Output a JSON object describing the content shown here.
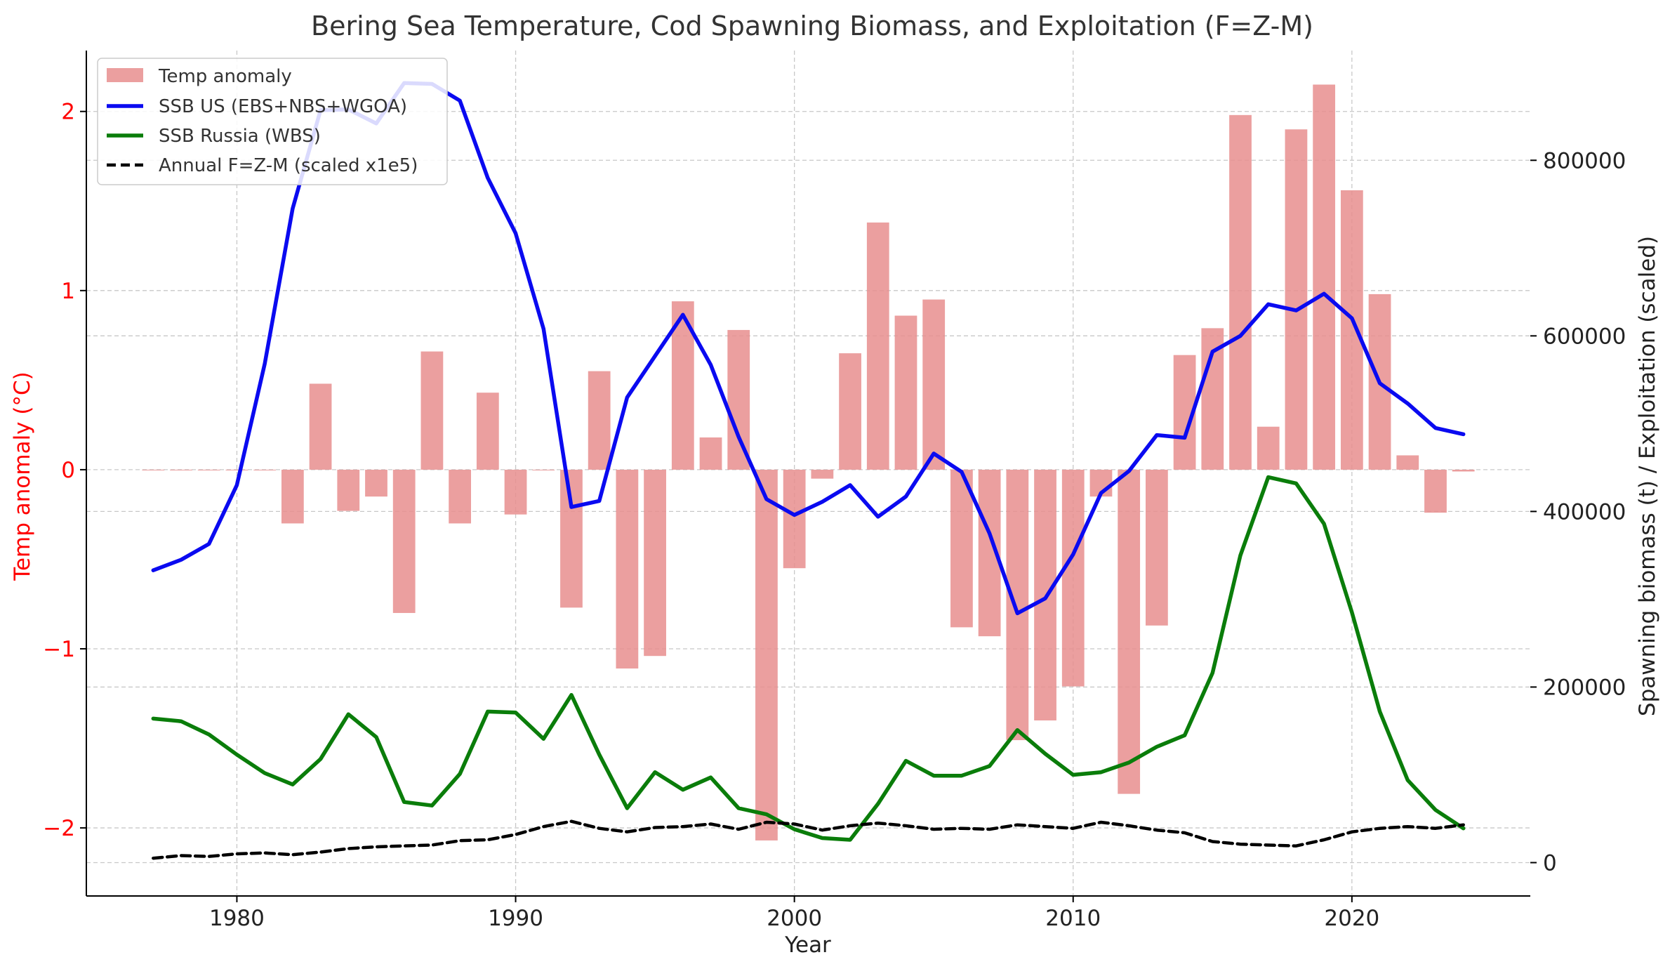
{
  "chart_data": {
    "type": "bar+line",
    "title": "Bering Sea Temperature, Cod Spawning Biomass, and Exploitation (F=Z-M)",
    "xlabel": "Year",
    "ylabel_left": "Temp anomaly (°C)",
    "ylabel_right": "Spawning biomass (t) / Exploitation (scaled)",
    "xlim": [
      1974.6,
      2026.4
    ],
    "ylim_left": [
      -2.38,
      2.34
    ],
    "ylim_right": [
      -38000,
      925000
    ],
    "xticks": [
      1980,
      1990,
      2000,
      2010,
      2020
    ],
    "yticks_left": [
      -2,
      -1,
      0,
      1,
      2
    ],
    "yticks_left_labels": [
      "−2",
      "−1",
      "0",
      "1",
      "2"
    ],
    "yticks_right": [
      0,
      200000,
      400000,
      600000,
      800000
    ],
    "yticks_right_labels": [
      "0",
      "200000",
      "400000",
      "600000",
      "800000"
    ],
    "grid": true,
    "legend_position": "top-left",
    "colors": {
      "temp": "#e88e8e",
      "ssb_us": "#0a0af0",
      "ssb_russia": "#0a7d0a",
      "exploitation": "#000000",
      "left_axis": "#ff0000"
    },
    "x": [
      1977,
      1978,
      1979,
      1980,
      1981,
      1982,
      1983,
      1984,
      1985,
      1986,
      1987,
      1988,
      1989,
      1990,
      1991,
      1992,
      1993,
      1994,
      1995,
      1996,
      1997,
      1998,
      1999,
      2000,
      2001,
      2002,
      2003,
      2004,
      2005,
      2006,
      2007,
      2008,
      2009,
      2010,
      2011,
      2012,
      2013,
      2014,
      2015,
      2016,
      2017,
      2018,
      2019,
      2020,
      2021,
      2022,
      2023,
      2024
    ],
    "series": [
      {
        "name": "Temp anomaly",
        "kind": "bar",
        "axis": "left",
        "values": [
          0,
          0,
          0,
          0,
          0,
          -0.3,
          0.48,
          -0.23,
          -0.15,
          -0.8,
          0.66,
          -0.3,
          0.43,
          -0.25,
          0,
          -0.77,
          0.55,
          -1.11,
          -1.04,
          0.94,
          0.18,
          0.78,
          -2.07,
          -0.55,
          -0.05,
          0.65,
          1.38,
          0.86,
          0.95,
          -0.88,
          -0.93,
          -1.51,
          -1.4,
          -1.21,
          -0.15,
          -1.81,
          -0.87,
          0.64,
          0.79,
          1.98,
          0.24,
          1.9,
          2.15,
          1.56,
          0.98,
          0.08,
          -0.24,
          -0.01
        ]
      },
      {
        "name": "SSB US (EBS+NBS+WGOA)",
        "kind": "line",
        "axis": "right",
        "values": [
          333000,
          345000,
          363000,
          430000,
          568000,
          745000,
          857000,
          858000,
          842000,
          888000,
          887000,
          868000,
          780000,
          717000,
          608000,
          405000,
          412000,
          530000,
          577000,
          624000,
          567000,
          485000,
          414000,
          396000,
          411000,
          430000,
          394000,
          417000,
          466000,
          445000,
          375000,
          284000,
          301000,
          351000,
          421000,
          446000,
          487000,
          484000,
          582000,
          600000,
          636000,
          629000,
          648000,
          620000,
          546000,
          523000,
          495000,
          488000
        ]
      },
      {
        "name": "SSB Russia (WBS)",
        "kind": "line",
        "axis": "right",
        "values": [
          164000,
          161000,
          146000,
          123000,
          102000,
          89000,
          118000,
          169000,
          143000,
          69000,
          65000,
          101000,
          172000,
          171000,
          141000,
          191000,
          123000,
          62000,
          103000,
          83000,
          97000,
          62000,
          55000,
          38000,
          28000,
          26000,
          67000,
          116000,
          99000,
          99000,
          110000,
          151000,
          124000,
          100000,
          103000,
          114000,
          132000,
          145000,
          216000,
          350000,
          439000,
          432000,
          386000,
          285000,
          172000,
          94000,
          60000,
          39000
        ]
      },
      {
        "name": "Annual F=Z-M (scaled x1e5)",
        "kind": "dashed-line",
        "axis": "right",
        "values": [
          5000,
          8000,
          7000,
          10000,
          11000,
          9000,
          12000,
          16000,
          18000,
          19000,
          20000,
          25000,
          26000,
          32000,
          41000,
          47000,
          39000,
          35000,
          40000,
          41000,
          44000,
          38000,
          46000,
          44000,
          37000,
          42000,
          45000,
          42000,
          38000,
          39000,
          38000,
          43000,
          41000,
          39000,
          46000,
          42000,
          37000,
          34000,
          24000,
          21000,
          20000,
          19000,
          26000,
          35000,
          39000,
          41000,
          39000,
          43000
        ]
      }
    ]
  }
}
